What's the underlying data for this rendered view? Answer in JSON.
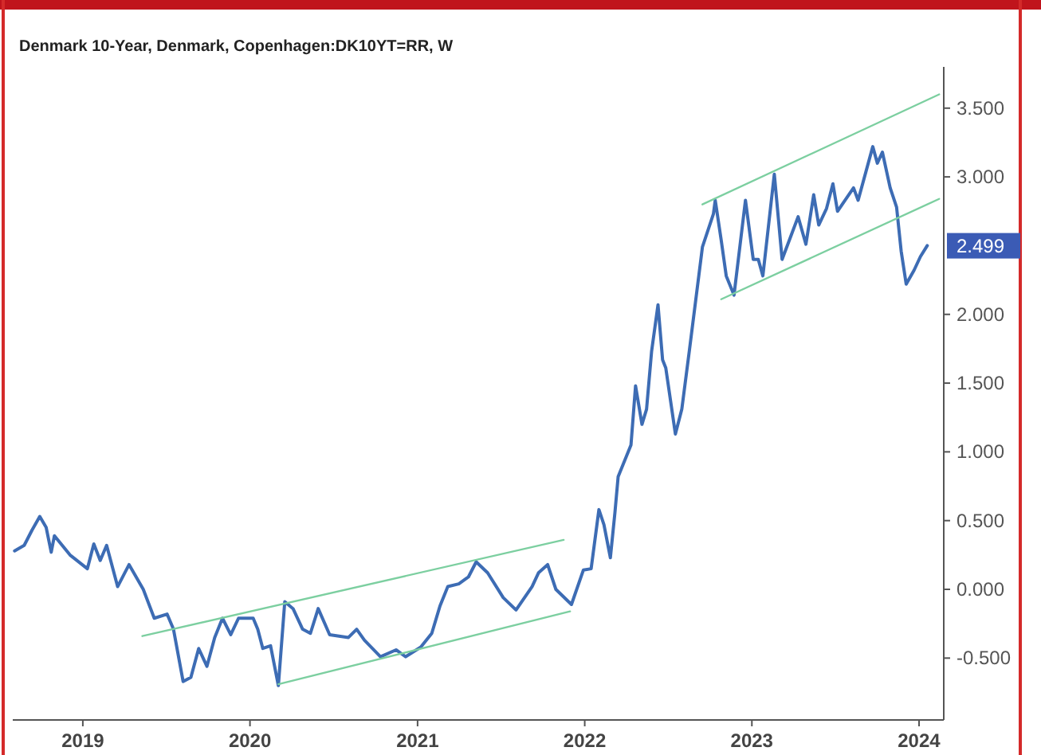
{
  "chart_data": {
    "type": "line",
    "title": "Denmark 10-Year, Denmark, Copenhagen:DK10YT=RR, W",
    "xlim": [
      "2018-08-01",
      "2024-02-24"
    ],
    "xticks": [
      "2019",
      "2020",
      "2021",
      "2022",
      "2023",
      "2024"
    ],
    "ylim": [
      -0.95,
      3.8
    ],
    "yticks": [
      {
        "value": -0.5,
        "label": "-0.500"
      },
      {
        "value": 0,
        "label": "0.000"
      },
      {
        "value": 0.5,
        "label": "0.500"
      },
      {
        "value": 1,
        "label": "1.000"
      },
      {
        "value": 1.5,
        "label": "1.500"
      },
      {
        "value": 2,
        "label": "2.000"
      },
      {
        "value": 3,
        "label": "3.000"
      },
      {
        "value": 3.5,
        "label": "3.500"
      }
    ],
    "grid": false,
    "marker": "none",
    "line_style": "solid",
    "annotations": [
      {
        "text": "2.499",
        "x": "2024-01-19",
        "y": 2.499
      }
    ],
    "series": [
      {
        "type": "line",
        "color": "#3d6cb4",
        "x": [
          "2018-08-05",
          "2018-08-26",
          "2018-09-12",
          "2018-09-29",
          "2018-10-13",
          "2018-10-24",
          "2018-10-31",
          "2018-12-04",
          "2019-01-11",
          "2019-01-25",
          "2019-02-08",
          "2019-02-22",
          "2019-03-18",
          "2019-04-12",
          "2019-05-13",
          "2019-06-06",
          "2019-07-04",
          "2019-07-18",
          "2019-08-08",
          "2019-08-25",
          "2019-09-11",
          "2019-09-29",
          "2019-10-16",
          "2019-11-02",
          "2019-11-20",
          "2019-12-07",
          "2020-01-08",
          "2020-01-18",
          "2020-01-29",
          "2020-02-15",
          "2020-03-03",
          "2020-03-17",
          "2020-04-04",
          "2020-04-25",
          "2020-05-12",
          "2020-05-29",
          "2020-06-23",
          "2020-08-03",
          "2020-08-21",
          "2020-09-07",
          "2020-10-12",
          "2020-11-15",
          "2020-12-06",
          "2021-01-08",
          "2021-02-01",
          "2021-02-19",
          "2021-03-08",
          "2021-04-01",
          "2021-04-22",
          "2021-05-09",
          "2021-06-03",
          "2021-07-07",
          "2021-08-04",
          "2021-09-08",
          "2021-09-22",
          "2021-10-12",
          "2021-10-30",
          "2021-12-03",
          "2021-12-29",
          "2022-01-15",
          "2022-02-01",
          "2022-02-12",
          "2022-02-26",
          "2022-03-08",
          "2022-03-15",
          "2022-04-12",
          "2022-04-22",
          "2022-05-06",
          "2022-05-16",
          "2022-05-27",
          "2022-06-10",
          "2022-06-20",
          "2022-06-27",
          "2022-07-18",
          "2022-08-01",
          "2022-08-18",
          "2022-09-15",
          "2022-10-09",
          "2022-10-13",
          "2022-10-26",
          "2022-11-06",
          "2022-11-23",
          "2022-12-18",
          "2023-01-04",
          "2023-01-15",
          "2023-01-25",
          "2023-02-19",
          "2023-03-08",
          "2023-03-25",
          "2023-04-12",
          "2023-04-29",
          "2023-05-16",
          "2023-05-27",
          "2023-06-13",
          "2023-06-27",
          "2023-07-07",
          "2023-08-11",
          "2023-08-21",
          "2023-09-22",
          "2023-10-02",
          "2023-10-13",
          "2023-10-30",
          "2023-11-13",
          "2023-11-23",
          "2023-12-04",
          "2023-12-21",
          "2024-01-04",
          "2024-01-19"
        ],
        "values": [
          0.28,
          0.32,
          0.43,
          0.53,
          0.45,
          0.27,
          0.39,
          0.25,
          0.15,
          0.33,
          0.21,
          0.32,
          0.02,
          0.18,
          0.0,
          -0.21,
          -0.18,
          -0.29,
          -0.67,
          -0.64,
          -0.43,
          -0.56,
          -0.35,
          -0.21,
          -0.33,
          -0.21,
          -0.21,
          -0.29,
          -0.43,
          -0.41,
          -0.7,
          -0.09,
          -0.14,
          -0.29,
          -0.32,
          -0.14,
          -0.33,
          -0.35,
          -0.29,
          -0.37,
          -0.49,
          -0.44,
          -0.49,
          -0.42,
          -0.32,
          -0.12,
          0.02,
          0.04,
          0.09,
          0.2,
          0.12,
          -0.06,
          -0.15,
          0.02,
          0.12,
          0.18,
          0.0,
          -0.11,
          0.14,
          0.15,
          0.58,
          0.47,
          0.23,
          0.56,
          0.82,
          1.05,
          1.48,
          1.2,
          1.31,
          1.73,
          2.07,
          1.67,
          1.61,
          1.13,
          1.31,
          1.75,
          2.49,
          2.73,
          2.83,
          2.54,
          2.28,
          2.14,
          2.83,
          2.4,
          2.4,
          2.28,
          3.02,
          2.4,
          2.55,
          2.71,
          2.51,
          2.87,
          2.65,
          2.77,
          2.95,
          2.75,
          2.92,
          2.83,
          3.22,
          3.1,
          3.18,
          2.92,
          2.78,
          2.46,
          2.22,
          2.32,
          2.42,
          2.5
        ]
      },
      {
        "type": "line",
        "color": "#7ccfa0",
        "x": [
          "2019-05-11",
          "2021-11-16"
        ],
        "values": [
          -0.34,
          0.36
        ]
      },
      {
        "type": "line",
        "color": "#7ccfa0",
        "x": [
          "2020-03-03",
          "2021-11-30"
        ],
        "values": [
          -0.69,
          -0.16
        ]
      },
      {
        "type": "line",
        "color": "#7ccfa0",
        "x": [
          "2022-09-15",
          "2024-02-14"
        ],
        "values": [
          2.8,
          3.6
        ]
      },
      {
        "type": "line",
        "color": "#7ccfa0",
        "x": [
          "2022-10-26",
          "2024-02-14"
        ],
        "values": [
          2.11,
          2.84
        ]
      }
    ]
  }
}
